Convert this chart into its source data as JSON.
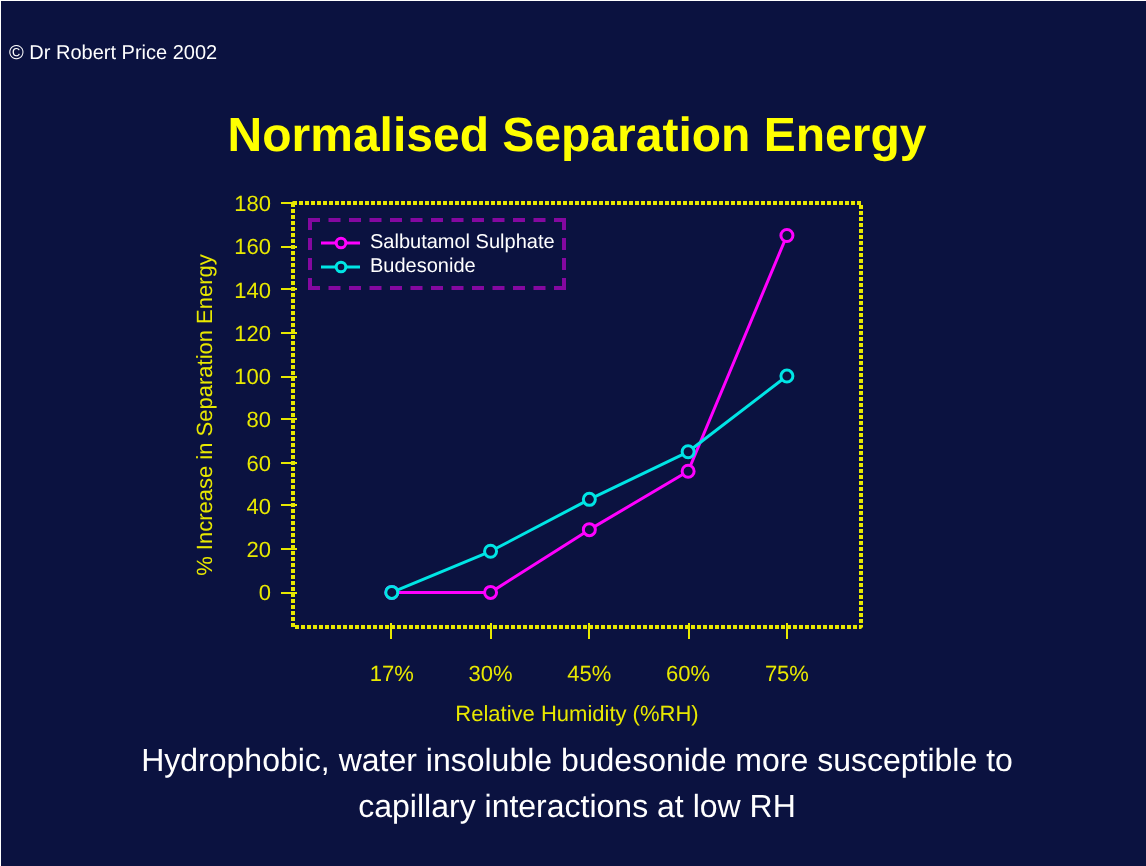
{
  "chart_data": {
    "type": "line",
    "title": "Normalised Separation Energy",
    "xlabel": "Relative Humidity (%RH)",
    "ylabel": "% Increase in Separation Energy",
    "categories": [
      "17%",
      "30%",
      "45%",
      "60%",
      "75%"
    ],
    "series": [
      {
        "name": "Salbutamol Sulphate",
        "color": "#ff00ff",
        "values": [
          0,
          0,
          29,
          56,
          165
        ]
      },
      {
        "name": "Budesonide",
        "color": "#00e5e5",
        "values": [
          0,
          19,
          43,
          65,
          100
        ]
      }
    ],
    "ylim": [
      -16,
      180
    ],
    "yticks": [
      0,
      20,
      40,
      60,
      80,
      100,
      120,
      140,
      160,
      180
    ],
    "grid": false,
    "legend": "top left",
    "marker": "circle",
    "line_style": "solid",
    "annotations": [
      "© Dr Robert Price  2002",
      "Hydrophobic, water insoluble budesonide more susceptible to capillary interactions at low RH"
    ]
  }
}
